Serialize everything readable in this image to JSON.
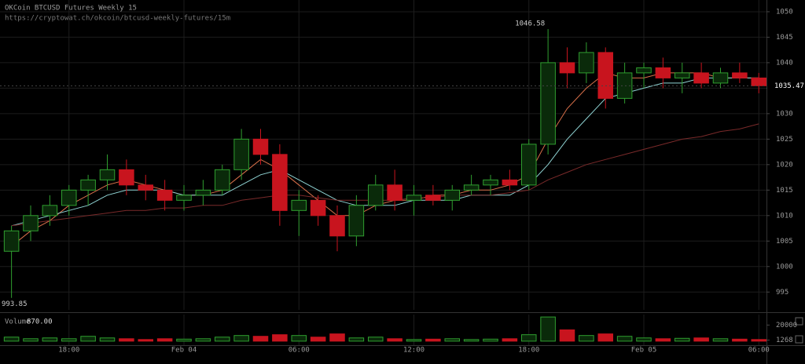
{
  "chart_data": {
    "type": "candlestick",
    "title": "OKCoin BTCUSD Futures Weekly 15",
    "subtitle": "https://cryptowat.ch/okcoin/btcusd-weekly-futures/15m",
    "x": [
      1,
      2,
      3,
      4,
      5,
      6,
      7,
      8,
      9,
      10,
      11,
      12,
      13,
      14,
      15,
      16,
      17,
      18,
      19,
      20,
      21,
      22,
      23,
      24,
      25,
      26,
      27,
      28,
      29,
      30,
      31,
      32,
      33,
      34,
      35,
      36,
      37,
      38,
      39,
      40
    ],
    "open": [
      1003,
      1007,
      1010,
      1012,
      1015,
      1017,
      1019,
      1016,
      1015,
      1013,
      1014,
      1015,
      1019,
      1025,
      1022,
      1011,
      1013,
      1010,
      1006,
      1012,
      1016,
      1013,
      1014,
      1013,
      1015,
      1016,
      1017,
      1016,
      1024,
      1040,
      1038,
      1042,
      1033,
      1038,
      1039,
      1037,
      1038,
      1036,
      1038,
      1037
    ],
    "high": [
      1008,
      1012,
      1014,
      1016,
      1018,
      1022,
      1021,
      1018,
      1017,
      1016,
      1017,
      1020,
      1027,
      1027,
      1024,
      1015,
      1014,
      1012,
      1014,
      1018,
      1019,
      1016,
      1016,
      1016,
      1018,
      1018,
      1019,
      1025,
      1046.58,
      1043,
      1044,
      1043,
      1040,
      1040,
      1041,
      1040,
      1040,
      1039,
      1040,
      1038
    ],
    "low": [
      993.85,
      1005,
      1008,
      1010,
      1012,
      1015,
      1014,
      1013,
      1011,
      1011,
      1012,
      1014,
      1017,
      1020,
      1008,
      1006,
      1008,
      1003,
      1004,
      1011,
      1011,
      1010,
      1012,
      1011,
      1014,
      1014,
      1015,
      1015,
      1022,
      1035,
      1036,
      1031,
      1032,
      1035,
      1035,
      1034,
      1035,
      1035,
      1036,
      1034
    ],
    "close": [
      1007,
      1010,
      1012,
      1015,
      1017,
      1019,
      1016,
      1015,
      1013,
      1014,
      1015,
      1019,
      1025,
      1022,
      1011,
      1013,
      1010,
      1006,
      1012,
      1016,
      1013,
      1014,
      1013,
      1015,
      1016,
      1017,
      1016,
      1024,
      1040,
      1038,
      1042,
      1033,
      1038,
      1039,
      1037,
      1038,
      1036,
      1038,
      1037,
      1035.47
    ],
    "up_color": "#2f9e2f",
    "down_color": "#c8141e",
    "xlim": [
      0.4,
      40.4
    ],
    "xticks": [
      {
        "value": 4,
        "label": "18:00"
      },
      {
        "value": 10,
        "label": "Feb 04"
      },
      {
        "value": 16,
        "label": "06:00"
      },
      {
        "value": 22,
        "label": "12:00"
      },
      {
        "value": 28,
        "label": "18:00"
      },
      {
        "value": 34,
        "label": "Feb 05"
      },
      {
        "value": 40,
        "label": "06:00"
      }
    ],
    "ylim": [
      991.5,
      1052.3
    ],
    "yticks": [
      995,
      1000,
      1005,
      1010,
      1015,
      1020,
      1025,
      1030,
      1035,
      1040,
      1045,
      1050
    ],
    "grid": true,
    "lines": [
      {
        "color": "#d9704a",
        "values": [
          1004,
          1007,
          1009,
          1012,
          1014,
          1016,
          1017,
          1016,
          1015,
          1014,
          1014,
          1015,
          1018,
          1021,
          1019,
          1016,
          1013,
          1010,
          1010,
          1012,
          1013,
          1013,
          1014,
          1014,
          1015,
          1015,
          1016,
          1018,
          1025,
          1031,
          1035,
          1038,
          1037,
          1037,
          1038,
          1038,
          1038,
          1037,
          1037,
          1037
        ]
      },
      {
        "color": "#8fd3d3",
        "values": [
          1008,
          1009,
          1010,
          1011,
          1012,
          1014,
          1015,
          1015,
          1015,
          1014,
          1014,
          1014,
          1016,
          1018,
          1019,
          1017,
          1015,
          1013,
          1012,
          1012,
          1012,
          1013,
          1013,
          1013,
          1014,
          1014,
          1014,
          1016,
          1020,
          1025,
          1029,
          1033,
          1034,
          1035,
          1036,
          1036,
          1037,
          1037,
          1037,
          1037
        ]
      },
      {
        "color": "#7a2a2a",
        "values": [
          1008,
          1008.5,
          1009,
          1009.5,
          1010,
          1010.5,
          1011,
          1011,
          1011.5,
          1011.5,
          1012,
          1012,
          1013,
          1013.5,
          1014,
          1014,
          1013.5,
          1013,
          1013,
          1013,
          1013,
          1013.5,
          1013.5,
          1014,
          1014,
          1014,
          1014.5,
          1015,
          1017,
          1018.5,
          1020,
          1021,
          1022,
          1023,
          1024,
          1025,
          1025.5,
          1026.5,
          1027,
          1028
        ]
      }
    ],
    "annotations": {
      "high": 1046.58,
      "low": 993.85,
      "last": 1035.47
    },
    "volume": {
      "label": "Volume",
      "value_label": "870.00",
      "values": [
        5000,
        3000,
        4000,
        3000,
        6000,
        4000,
        3000,
        2000,
        3000,
        2500,
        3000,
        5000,
        7000,
        6000,
        8000,
        7000,
        5000,
        9000,
        4000,
        5000,
        3000,
        2000,
        2500,
        3000,
        2000,
        2500,
        3000,
        8000,
        30000,
        14000,
        7000,
        9000,
        6000,
        4000,
        3000,
        3500,
        4000,
        3000,
        2500,
        2000
      ],
      "ylim": [
        -5000,
        33000
      ],
      "yticks": [
        20000,
        1268
      ]
    }
  }
}
